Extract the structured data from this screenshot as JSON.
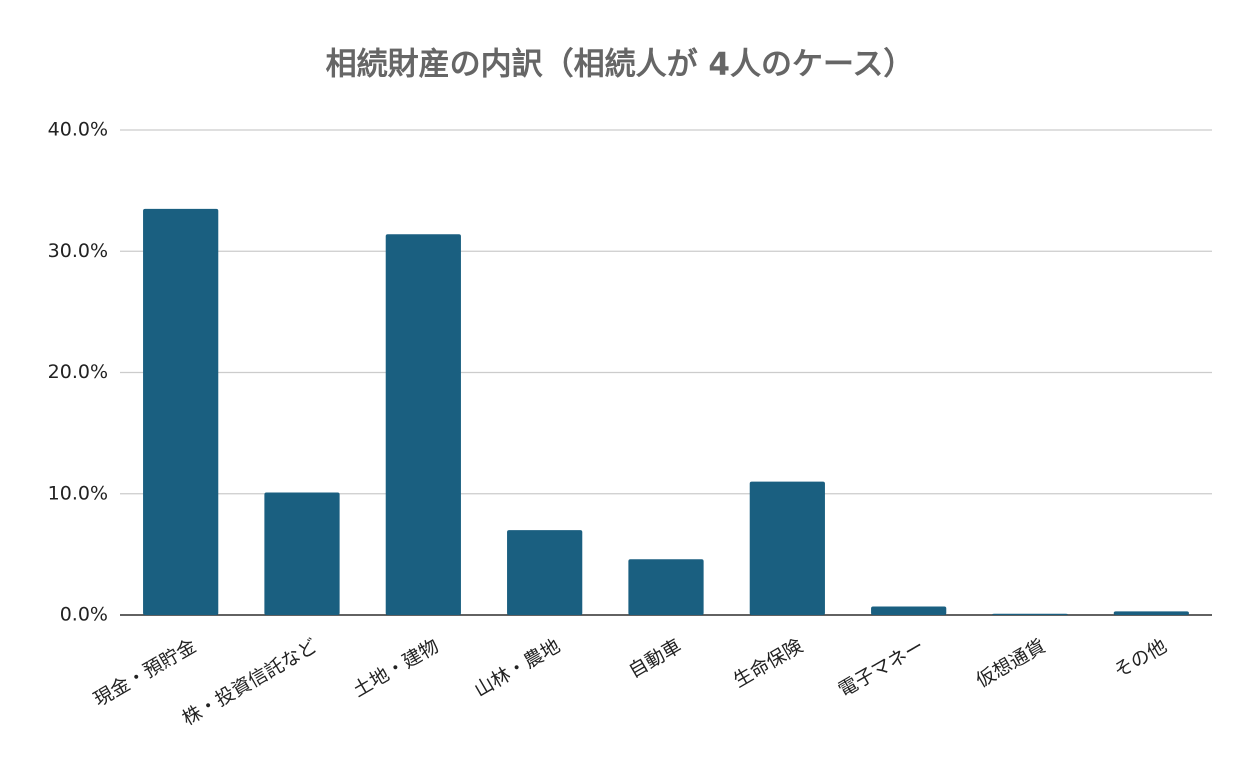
{
  "chart_data": {
    "type": "bar",
    "title": "相続財産の内訳（相続人が 4人のケース）",
    "categories": [
      "現金・預貯金",
      "株・投資信託など",
      "土地・建物",
      "山林・農地",
      "自動車",
      "生命保険",
      "電子マネー",
      "仮想通貨",
      "その他"
    ],
    "values": [
      33.5,
      10.1,
      31.4,
      7.0,
      4.6,
      11.0,
      0.7,
      0.1,
      0.3
    ],
    "color": "#1a5f80",
    "ylim": [
      0,
      40
    ],
    "yticks": [
      {
        "value": 0,
        "label": "0.0%"
      },
      {
        "value": 10,
        "label": "10.0%"
      },
      {
        "value": 20,
        "label": "20.0%"
      },
      {
        "value": 30,
        "label": "30.0%"
      },
      {
        "value": 40,
        "label": "40.0%"
      }
    ],
    "grid": true
  }
}
